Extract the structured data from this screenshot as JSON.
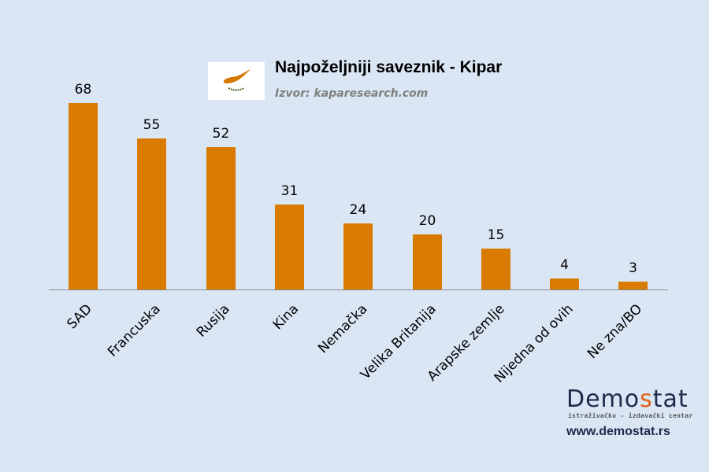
{
  "header": {
    "title": "Najpoželjniji saveznik - Kipar",
    "source": "Izvor: kaparesearch.com",
    "flag": "cyprus-flag"
  },
  "branding": {
    "logo_prefix": "Demo",
    "logo_accent": "s",
    "logo_suffix": "tat",
    "tagline": "istraživačko - izdavački centar",
    "url": "www.demostat.rs"
  },
  "colors": {
    "bar": "#d97b00",
    "background": "#dae6f4",
    "axis": "#8c8c8c",
    "brand": "#1c2b4a",
    "brand_accent": "#e2621b"
  },
  "chart_data": {
    "type": "bar",
    "title": "Najpoželjniji saveznik - Kipar",
    "subtitle": "Izvor: kaparesearch.com",
    "categories": [
      "SAD",
      "Francuska",
      "Rusija",
      "Kina",
      "Nemačka",
      "Velika Britanija",
      "Arapske zemlje",
      "Nijedna od ovih",
      "Ne zna/BO"
    ],
    "values": [
      68,
      55,
      52,
      31,
      24,
      20,
      15,
      4,
      3
    ],
    "xlabel": "",
    "ylabel": "",
    "ylim": [
      0,
      70
    ],
    "grid": false,
    "legend": "none",
    "data_labels": true
  }
}
